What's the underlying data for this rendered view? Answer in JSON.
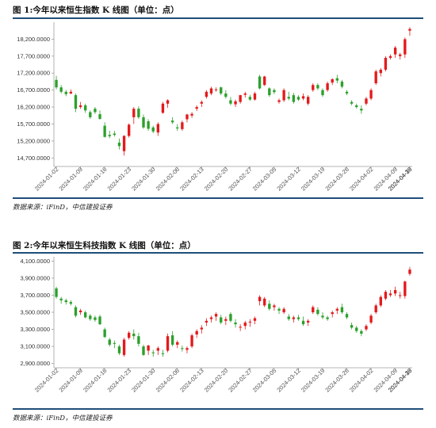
{
  "charts": [
    {
      "title": "图 1:今年以来恒生指数 K 线图（单位：点）",
      "source": "数据来源：iFinD，中信建投证券"
    },
    {
      "title": "图 2:今年以来恒生科技指数 K 线图（单位：点）",
      "source": "数据来源：iFinD，中信建投证券"
    }
  ],
  "colors": {
    "up": "#e31a1c",
    "down": "#2ca02c",
    "rule": "#1f4e79",
    "axis": "#9e9e9e"
  },
  "chart_data": [
    {
      "type": "candlestick",
      "title": "图 1:今年以来恒生指数 K 线图（单位：点）",
      "xlabel": "",
      "ylabel": "",
      "ylim": [
        14450,
        18700
      ],
      "yticks": [
        14700,
        15200,
        15700,
        16200,
        16700,
        17200,
        17700,
        18200
      ],
      "ytick_labels": [
        "14,700.0000",
        "15,200.0000",
        "15,700.0000",
        "16,200.0000",
        "16,700.0000",
        "17,200.0000",
        "17,700.0000",
        "18,200.0000"
      ],
      "xtick_labels": [
        "2024-01-02",
        "2024-01-09",
        "2024-01-16",
        "2024-01-23",
        "2024-01-30",
        "2024-02-06",
        "2024-02-13",
        "2024-02-20",
        "2024-02-27",
        "2024-03-05",
        "2024-03-12",
        "2024-03-19",
        "2024-03-26",
        "2024-04-02",
        "2024-04-09",
        "2024-04-16",
        "2024-04-23",
        "2024-04-30"
      ],
      "grid": false,
      "candles": [
        [
          17000,
          17120,
          16720,
          16780
        ],
        [
          16780,
          16850,
          16600,
          16650
        ],
        [
          16650,
          16700,
          16520,
          16580
        ],
        [
          16600,
          16720,
          16580,
          16650
        ],
        [
          16550,
          16600,
          16050,
          16150
        ],
        [
          16200,
          16350,
          16150,
          16250
        ],
        [
          16250,
          16300,
          16030,
          16100
        ],
        [
          16050,
          16100,
          15850,
          15900
        ],
        [
          16150,
          16200,
          16000,
          16050
        ],
        [
          15990,
          16100,
          15830,
          15850
        ],
        [
          15650,
          15750,
          15300,
          15320
        ],
        [
          15380,
          15500,
          15280,
          15340
        ],
        [
          15420,
          15500,
          15330,
          15380
        ],
        [
          15150,
          15270,
          14950,
          15050
        ],
        [
          14900,
          15370,
          14770,
          15350
        ],
        [
          15350,
          15720,
          15300,
          15680
        ],
        [
          15900,
          16200,
          15700,
          16150
        ],
        [
          16150,
          16220,
          15850,
          15900
        ],
        [
          15900,
          15980,
          15560,
          15600
        ],
        [
          15780,
          15840,
          15500,
          15560
        ],
        [
          15600,
          15650,
          15430,
          15480
        ],
        [
          15450,
          15750,
          15350,
          15700
        ],
        [
          16030,
          16350,
          16000,
          16300
        ],
        [
          16300,
          16430,
          16180,
          16400
        ],
        [
          15800,
          15900,
          15700,
          15750
        ],
        [
          15600,
          15700,
          15500,
          15570
        ],
        [
          15550,
          15800,
          15500,
          15750
        ],
        [
          15840,
          16000,
          15750,
          15980
        ],
        [
          15950,
          16050,
          15880,
          16000
        ],
        [
          16150,
          16250,
          16080,
          16200
        ],
        [
          16300,
          16400,
          16200,
          16350
        ],
        [
          16500,
          16700,
          16450,
          16650
        ],
        [
          16600,
          16800,
          16550,
          16750
        ],
        [
          16700,
          16780,
          16650,
          16720
        ],
        [
          16780,
          16800,
          16550,
          16600
        ],
        [
          16600,
          16700,
          16450,
          16500
        ],
        [
          16400,
          16500,
          16250,
          16300
        ],
        [
          16280,
          16420,
          16200,
          16370
        ],
        [
          16350,
          16560,
          16300,
          16550
        ],
        [
          16560,
          16650,
          16480,
          16600
        ],
        [
          16500,
          16560,
          16380,
          16420
        ],
        [
          16420,
          16650,
          16390,
          16600
        ],
        [
          17100,
          17150,
          16720,
          16750
        ],
        [
          16850,
          17120,
          16820,
          17100
        ],
        [
          16750,
          16780,
          16500,
          16550
        ],
        [
          16700,
          16750,
          16580,
          16640
        ],
        [
          16350,
          16450,
          16300,
          16400
        ],
        [
          16400,
          16750,
          16350,
          16700
        ],
        [
          16500,
          16650,
          16400,
          16450
        ],
        [
          16550,
          16620,
          16300,
          16350
        ],
        [
          16500,
          16550,
          16380,
          16420
        ],
        [
          16450,
          16600,
          16400,
          16520
        ],
        [
          16300,
          16550,
          16250,
          16500
        ],
        [
          16700,
          16900,
          16650,
          16850
        ],
        [
          16850,
          16900,
          16700,
          16750
        ],
        [
          16700,
          16750,
          16500,
          16550
        ],
        [
          16700,
          16950,
          16650,
          16900
        ],
        [
          16920,
          17050,
          16850,
          17020
        ],
        [
          17050,
          17150,
          16900,
          16980
        ],
        [
          16950,
          17000,
          16750,
          16800
        ],
        [
          16650,
          16700,
          16550,
          16600
        ],
        [
          16350,
          16400,
          16250,
          16300
        ],
        [
          16250,
          16300,
          16150,
          16200
        ],
        [
          16150,
          16250,
          16000,
          16100
        ],
        [
          16300,
          16500,
          16250,
          16450
        ],
        [
          16450,
          16750,
          16400,
          16700
        ],
        [
          16900,
          17300,
          16850,
          17250
        ],
        [
          17200,
          17350,
          17100,
          17300
        ],
        [
          17300,
          17700,
          17250,
          17650
        ],
        [
          17650,
          17750,
          17600,
          17700
        ],
        [
          17750,
          18000,
          17650,
          17950
        ],
        [
          17700,
          17800,
          17600,
          17750
        ],
        [
          17750,
          18250,
          17650,
          18200
        ],
        [
          18450,
          18550,
          18300,
          18500
        ]
      ]
    },
    {
      "type": "candlestick",
      "title": "图 2:今年以来恒生科技指数 K 线图（单位：点）",
      "xlabel": "",
      "ylabel": "",
      "ylim": [
        2850,
        4150
      ],
      "yticks": [
        2900,
        3100,
        3300,
        3500,
        3700,
        3900,
        4100
      ],
      "ytick_labels": [
        "2,900.0000",
        "3,100.0000",
        "3,300.0000",
        "3,500.0000",
        "3,700.0000",
        "3,900.0000",
        "4,100.0000"
      ],
      "xtick_labels": [
        "2024-01-02",
        "2024-01-09",
        "2024-01-16",
        "2024-01-23",
        "2024-01-30",
        "2024-02-06",
        "2024-02-13",
        "2024-02-20",
        "2024-02-27",
        "2024-03-05",
        "2024-03-12",
        "2024-03-19",
        "2024-03-26",
        "2024-04-02",
        "2024-04-09",
        "2024-04-16",
        "2024-04-23",
        "2024-04-30"
      ],
      "grid": false,
      "candles": [
        [
          3780,
          3800,
          3660,
          3680
        ],
        [
          3660,
          3680,
          3600,
          3640
        ],
        [
          3640,
          3660,
          3590,
          3620
        ],
        [
          3620,
          3640,
          3580,
          3600
        ],
        [
          3560,
          3580,
          3440,
          3460
        ],
        [
          3500,
          3540,
          3470,
          3520
        ],
        [
          3500,
          3520,
          3430,
          3440
        ],
        [
          3460,
          3480,
          3400,
          3420
        ],
        [
          3440,
          3460,
          3390,
          3410
        ],
        [
          3450,
          3470,
          3350,
          3360
        ],
        [
          3300,
          3320,
          3200,
          3210
        ],
        [
          3180,
          3200,
          3100,
          3120
        ],
        [
          3140,
          3170,
          3080,
          3130
        ],
        [
          3100,
          3120,
          3000,
          3020
        ],
        [
          3000,
          3200,
          2980,
          3180
        ],
        [
          3200,
          3280,
          3180,
          3260
        ],
        [
          3250,
          3300,
          3180,
          3220
        ],
        [
          3220,
          3260,
          3100,
          3130
        ],
        [
          3100,
          3120,
          2990,
          3000
        ],
        [
          3050,
          3120,
          3000,
          3110
        ],
        [
          3030,
          3060,
          2980,
          3020
        ],
        [
          3050,
          3100,
          3000,
          3080
        ],
        [
          3020,
          3060,
          2980,
          3010
        ],
        [
          3050,
          3250,
          3030,
          3220
        ],
        [
          3230,
          3280,
          3100,
          3120
        ],
        [
          3120,
          3170,
          3080,
          3150
        ],
        [
          3080,
          3110,
          3040,
          3070
        ],
        [
          3060,
          3100,
          3020,
          3080
        ],
        [
          3100,
          3250,
          3080,
          3230
        ],
        [
          3240,
          3300,
          3200,
          3280
        ],
        [
          3300,
          3350,
          3250,
          3320
        ],
        [
          3380,
          3430,
          3340,
          3400
        ],
        [
          3420,
          3460,
          3380,
          3440
        ],
        [
          3450,
          3500,
          3400,
          3480
        ],
        [
          3440,
          3470,
          3360,
          3380
        ],
        [
          3400,
          3450,
          3350,
          3420
        ],
        [
          3480,
          3500,
          3380,
          3400
        ],
        [
          3380,
          3420,
          3320,
          3360
        ],
        [
          3320,
          3360,
          3280,
          3330
        ],
        [
          3340,
          3400,
          3300,
          3380
        ],
        [
          3380,
          3420,
          3330,
          3390
        ],
        [
          3400,
          3450,
          3360,
          3430
        ],
        [
          3630,
          3700,
          3580,
          3680
        ],
        [
          3580,
          3680,
          3560,
          3660
        ],
        [
          3600,
          3640,
          3520,
          3540
        ],
        [
          3560,
          3600,
          3520,
          3580
        ],
        [
          3540,
          3560,
          3480,
          3520
        ],
        [
          3500,
          3560,
          3480,
          3540
        ],
        [
          3450,
          3480,
          3400,
          3420
        ],
        [
          3420,
          3460,
          3380,
          3440
        ],
        [
          3440,
          3470,
          3400,
          3420
        ],
        [
          3400,
          3450,
          3340,
          3360
        ],
        [
          3380,
          3420,
          3340,
          3400
        ],
        [
          3500,
          3580,
          3480,
          3560
        ],
        [
          3530,
          3560,
          3460,
          3480
        ],
        [
          3460,
          3500,
          3420,
          3440
        ],
        [
          3440,
          3460,
          3400,
          3420
        ],
        [
          3480,
          3520,
          3440,
          3500
        ],
        [
          3520,
          3560,
          3480,
          3540
        ],
        [
          3560,
          3600,
          3480,
          3500
        ],
        [
          3480,
          3500,
          3420,
          3440
        ],
        [
          3350,
          3380,
          3300,
          3320
        ],
        [
          3320,
          3340,
          3260,
          3280
        ],
        [
          3280,
          3300,
          3220,
          3250
        ],
        [
          3300,
          3360,
          3280,
          3340
        ],
        [
          3380,
          3480,
          3360,
          3460
        ],
        [
          3500,
          3600,
          3480,
          3580
        ],
        [
          3580,
          3700,
          3560,
          3680
        ],
        [
          3660,
          3760,
          3640,
          3740
        ],
        [
          3700,
          3760,
          3680,
          3720
        ],
        [
          3720,
          3800,
          3690,
          3760
        ],
        [
          3690,
          3740,
          3660,
          3700
        ],
        [
          3690,
          3870,
          3660,
          3860
        ],
        [
          3950,
          4030,
          3930,
          4000
        ]
      ]
    }
  ]
}
